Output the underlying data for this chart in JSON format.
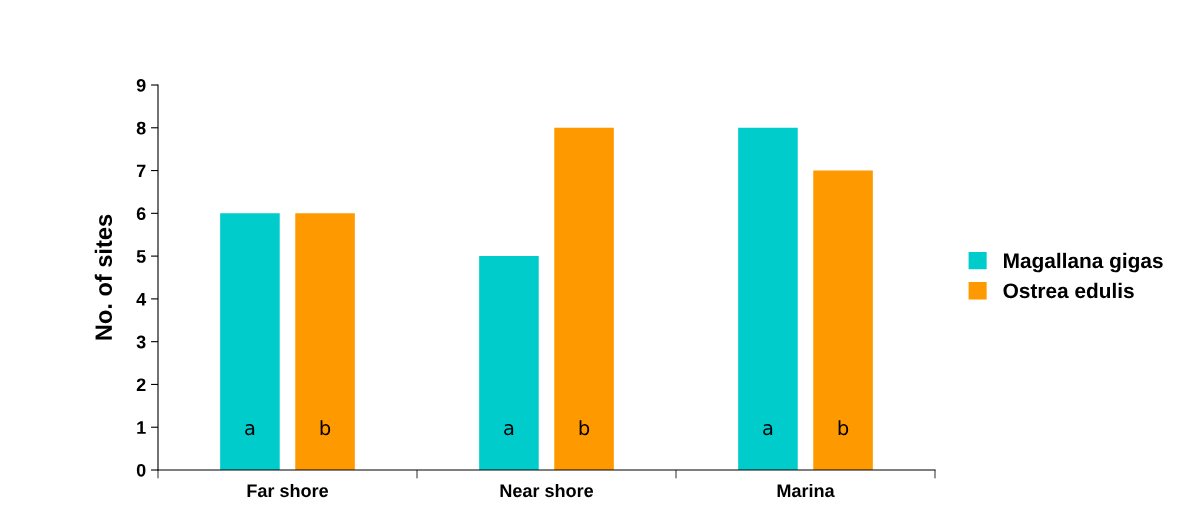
{
  "chart_data": {
    "type": "bar",
    "ylabel": "No. of sites",
    "categories": [
      "Far shore",
      "Near shore",
      "Marina"
    ],
    "series": [
      {
        "name": "Magallana gigas",
        "color": "#00cccc",
        "values": [
          6,
          5,
          8
        ],
        "value_labels": [
          "a",
          "a",
          "a"
        ]
      },
      {
        "name": "Ostrea edulis",
        "color": "#ff9900",
        "values": [
          6,
          8,
          7
        ],
        "value_labels": [
          "b",
          "b",
          "b"
        ]
      }
    ],
    "ylim": [
      0,
      9
    ],
    "yticks": [
      0,
      1,
      2,
      3,
      4,
      5,
      6,
      7,
      8,
      9
    ],
    "grid": false,
    "legend": "right"
  }
}
